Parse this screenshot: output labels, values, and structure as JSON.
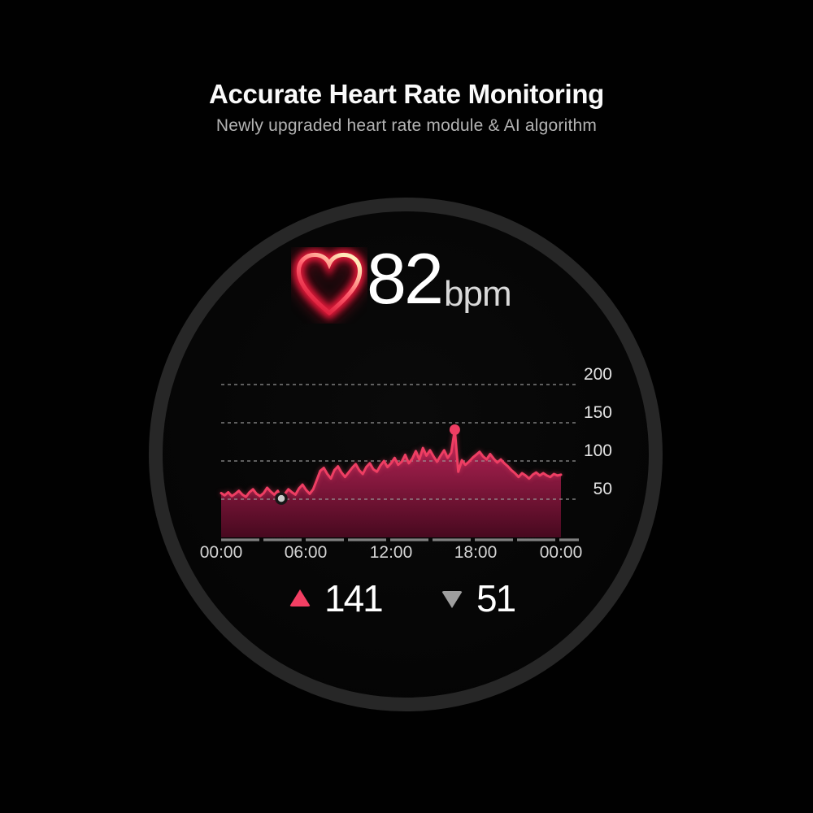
{
  "header": {
    "title": "Accurate Heart Rate Monitoring",
    "subtitle": "Newly upgraded heart rate module & AI algorithm"
  },
  "heart_rate": {
    "current": "82",
    "unit": "bpm"
  },
  "stats": {
    "max": "141",
    "min": "51"
  },
  "icons": {
    "heart": "neon-heart-icon",
    "max_marker": "up-triangle-icon",
    "min_marker": "down-triangle-icon"
  },
  "colors": {
    "accent": "#ee3e63",
    "area_top": "#b62355",
    "area_mid": "#8e1a42",
    "area_bottom": "#47091f",
    "grid": "#9a9a9a",
    "axis": "#7f7f7f",
    "max_marker": "#ee3e63",
    "min_marker": "#c9c9c9",
    "value_text": "#ffffff",
    "unit_text": "#d9d9d9"
  },
  "chart_data": {
    "type": "area",
    "description": "24-hour heart rate curve shown on watch face",
    "x_unit": "time of day (hours)",
    "y_unit": "bpm",
    "x_start_hour": 0,
    "x_step_hours": 0.25,
    "x_range": [
      0,
      24
    ],
    "y_range": [
      0,
      200
    ],
    "y_gridline_values": [
      200,
      150,
      100,
      50
    ],
    "y_tick_labels": [
      "200",
      "150",
      "100",
      "50"
    ],
    "x_tick_labels": [
      "00:00",
      "06:00",
      "12:00",
      "18:00",
      "00:00"
    ],
    "grid": "dashed horizontal gridlines, segmented baseline, no legend",
    "values": [
      58,
      55,
      59,
      54,
      57,
      61,
      56,
      53,
      59,
      63,
      57,
      54,
      58,
      65,
      60,
      56,
      61,
      51,
      57,
      63,
      59,
      56,
      64,
      69,
      62,
      57,
      63,
      75,
      87,
      91,
      83,
      77,
      88,
      93,
      85,
      79,
      85,
      91,
      96,
      88,
      83,
      92,
      97,
      89,
      86,
      94,
      100,
      92,
      97,
      104,
      95,
      99,
      108,
      97,
      103,
      113,
      102,
      117,
      107,
      114,
      106,
      99,
      107,
      114,
      104,
      111,
      141,
      86,
      101,
      95,
      99,
      104,
      108,
      112,
      106,
      102,
      109,
      103,
      98,
      102,
      97,
      93,
      88,
      84,
      79,
      84,
      81,
      77,
      82,
      85,
      81,
      84,
      81,
      79,
      83,
      81,
      82
    ],
    "markers": {
      "max": {
        "t": 16.5,
        "bpm": 141
      },
      "min": {
        "t": 4.25,
        "bpm": 51
      }
    }
  }
}
